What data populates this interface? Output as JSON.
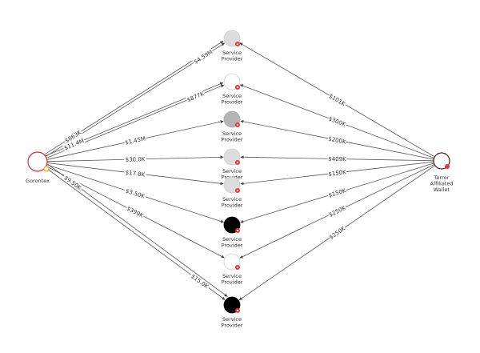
{
  "source": {
    "id": "src",
    "label": "Gorontex",
    "ring_color": "#d32f2f",
    "badge_color": "#f5a623"
  },
  "target": {
    "id": "tgt",
    "label_lines": [
      "Terror",
      "Affiliated",
      "Wallet"
    ],
    "ring_color": "#5a1a1a",
    "badge_color": "#e53935"
  },
  "providers": [
    {
      "label_lines": [
        "Service",
        "Provider"
      ],
      "fill": "#dddddd",
      "stroke": "#cccccc"
    },
    {
      "label_lines": [
        "Service",
        "Provider"
      ],
      "fill": "#ffffff",
      "stroke": "#cccccc"
    },
    {
      "label_lines": [
        "Service",
        "Provider"
      ],
      "fill": "#b5b5b5",
      "stroke": "#aaaaaa"
    },
    {
      "label_lines": [
        "Service",
        "Provider"
      ],
      "fill": "#dddddd",
      "stroke": "#cccccc"
    },
    {
      "label_lines": [
        "Service",
        "Provider"
      ],
      "fill": "#dddddd",
      "stroke": "#cccccc"
    },
    {
      "label_lines": [
        "Service",
        "Provider"
      ],
      "fill": "#000000",
      "stroke": "#000000"
    },
    {
      "label_lines": [
        "Service",
        "Provider"
      ],
      "fill": "#ffffff",
      "stroke": "#cccccc"
    },
    {
      "label_lines": [
        "Service",
        "Provider"
      ],
      "fill": "#000000",
      "stroke": "#000000"
    }
  ],
  "provider_badge_color": "#e53935",
  "edges_from_source": [
    {
      "to": 0,
      "amount": "$4.59M"
    },
    {
      "to": 0,
      "amount": "$863K"
    },
    {
      "to": 1,
      "amount": "$877K"
    },
    {
      "to": 1,
      "amount": "$11.4M"
    },
    {
      "to": 2,
      "amount": "$1.45M"
    },
    {
      "to": 3,
      "amount": "$30.0K"
    },
    {
      "to": 4,
      "amount": "$17.8K"
    },
    {
      "to": 5,
      "amount": "$3.50K"
    },
    {
      "to": 6,
      "amount": "$399K"
    },
    {
      "to": 7,
      "amount": "$15.0K"
    },
    {
      "to": 7,
      "amount": "$9.50K"
    }
  ],
  "edges_from_target": [
    {
      "to": 0,
      "amount": "$101K"
    },
    {
      "to": 1,
      "amount": "$300K"
    },
    {
      "to": 2,
      "amount": "$200K"
    },
    {
      "to": 3,
      "amount": "$409K"
    },
    {
      "to": 4,
      "amount": "$150K"
    },
    {
      "to": 5,
      "amount": "$150K"
    },
    {
      "to": 6,
      "amount": "$250K"
    },
    {
      "to": 7,
      "amount": "$250K"
    }
  ]
}
